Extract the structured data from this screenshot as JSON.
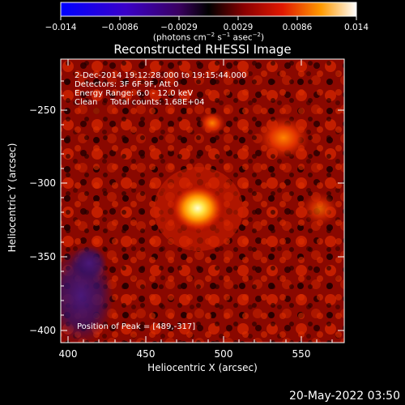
{
  "title": "Reconstructed RHESSI Image",
  "colorbar": {
    "tick_labels": [
      "−0.014",
      "−0.0086",
      "−0.0029",
      "0.0029",
      "0.0086",
      "0.014"
    ],
    "units_text": "(photons cm",
    "units_exp1": "−2",
    "units_mid1": " s",
    "units_exp2": "−1",
    "units_mid2": " asec",
    "units_exp3": "−2",
    "units_end": ")",
    "colormap": [
      "#0000ff",
      "#4000c0",
      "#500070",
      "#000000",
      "#900000",
      "#ff3000",
      "#ffb000",
      "#ffffff"
    ]
  },
  "info": {
    "line1": " 2-Dec-2014 19:12:28.000 to 19:15:44.000",
    "line2": "Detectors: 3F 6F 9F, Att 0",
    "line3": "Energy Range: 6.0 - 12.0 keV",
    "line4": "Clean     Total counts: 1.68E+04",
    "peak": "Position of Peak = [489,-317]"
  },
  "axes": {
    "xlabel": "Heliocentric X (arcsec)",
    "ylabel": "Heliocentric Y (arcsec)",
    "xtick_labels": [
      "400",
      "450",
      "500",
      "550"
    ],
    "ytick_labels": [
      "−250",
      "−300",
      "−350",
      "−400"
    ]
  },
  "footer": "20-May-2022 03:50"
}
